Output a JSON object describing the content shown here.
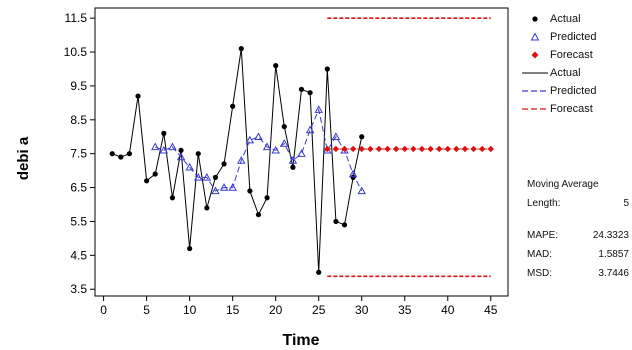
{
  "chart_data": {
    "type": "line",
    "xlabel": "Time",
    "ylabel": "debi a",
    "xlim": [
      -1,
      47
    ],
    "ylim": [
      3.3,
      11.8
    ],
    "xticks": [
      0,
      5,
      10,
      15,
      20,
      25,
      30,
      35,
      40,
      45
    ],
    "yticks": [
      3.5,
      4.5,
      5.5,
      6.5,
      7.5,
      8.5,
      9.5,
      10.5,
      11.5
    ],
    "grid": false,
    "legend_position": "right",
    "series": [
      {
        "name": "Actual",
        "color": "#000000",
        "x": [
          1,
          2,
          3,
          4,
          5,
          6,
          7,
          8,
          9,
          10,
          11,
          12,
          13,
          14,
          15,
          16,
          17,
          18,
          19,
          20,
          21,
          22,
          23,
          24,
          25,
          26,
          27,
          28,
          29,
          30
        ],
        "values": [
          7.5,
          7.4,
          7.5,
          9.2,
          6.7,
          6.9,
          8.1,
          6.2,
          7.6,
          4.7,
          7.5,
          5.9,
          6.8,
          7.2,
          8.9,
          10.6,
          6.4,
          5.7,
          6.2,
          10.1,
          8.3,
          7.1,
          9.4,
          9.3,
          4.0,
          10.0,
          5.5,
          5.4,
          6.8,
          8.0
        ]
      },
      {
        "name": "Predicted",
        "color": "#3a3ad0",
        "x": [
          6,
          7,
          8,
          9,
          10,
          11,
          12,
          13,
          14,
          15,
          16,
          17,
          18,
          19,
          20,
          21,
          22,
          23,
          24,
          25,
          26,
          27,
          28,
          29,
          30
        ],
        "values": [
          7.7,
          7.6,
          7.7,
          7.4,
          7.1,
          6.8,
          6.8,
          6.4,
          6.5,
          6.5,
          7.3,
          7.9,
          8.0,
          7.7,
          7.6,
          7.8,
          7.3,
          7.5,
          8.2,
          8.8,
          7.6,
          8.0,
          7.6,
          6.9,
          6.4
        ]
      },
      {
        "name": "Forecast",
        "color": "#dd1111",
        "x": [
          26,
          27,
          28,
          29,
          30,
          31,
          32,
          33,
          34,
          35,
          36,
          37,
          38,
          39,
          40,
          41,
          42,
          43,
          44,
          45
        ],
        "values": [
          7.64,
          7.64,
          7.64,
          7.64,
          7.64,
          7.64,
          7.64,
          7.64,
          7.64,
          7.64,
          7.64,
          7.64,
          7.64,
          7.64,
          7.64,
          7.64,
          7.64,
          7.64,
          7.64,
          7.64
        ],
        "upper": 11.5,
        "lower": 3.88
      }
    ]
  },
  "legend": {
    "symbols": [
      {
        "label": "Actual",
        "kind": "dot",
        "color": "#000000"
      },
      {
        "label": "Predicted",
        "kind": "triangle",
        "color": "#3a3ad0"
      },
      {
        "label": "Forecast",
        "kind": "diamond",
        "color": "#dd1111"
      },
      {
        "label": "Actual",
        "kind": "solid",
        "color": "#000000"
      },
      {
        "label": "Predicted",
        "kind": "dash",
        "color": "#3a3ad0"
      },
      {
        "label": "Forecast",
        "kind": "dash",
        "color": "#dd1111"
      }
    ]
  },
  "stats": {
    "heading": "Moving Average",
    "length_label": "Length:",
    "length_value": "5",
    "mape_label": "MAPE:",
    "mape_value": "24.3323",
    "mad_label": "MAD:",
    "mad_value": "1.5857",
    "msd_label": "MSD:",
    "msd_value": "3.7446"
  }
}
